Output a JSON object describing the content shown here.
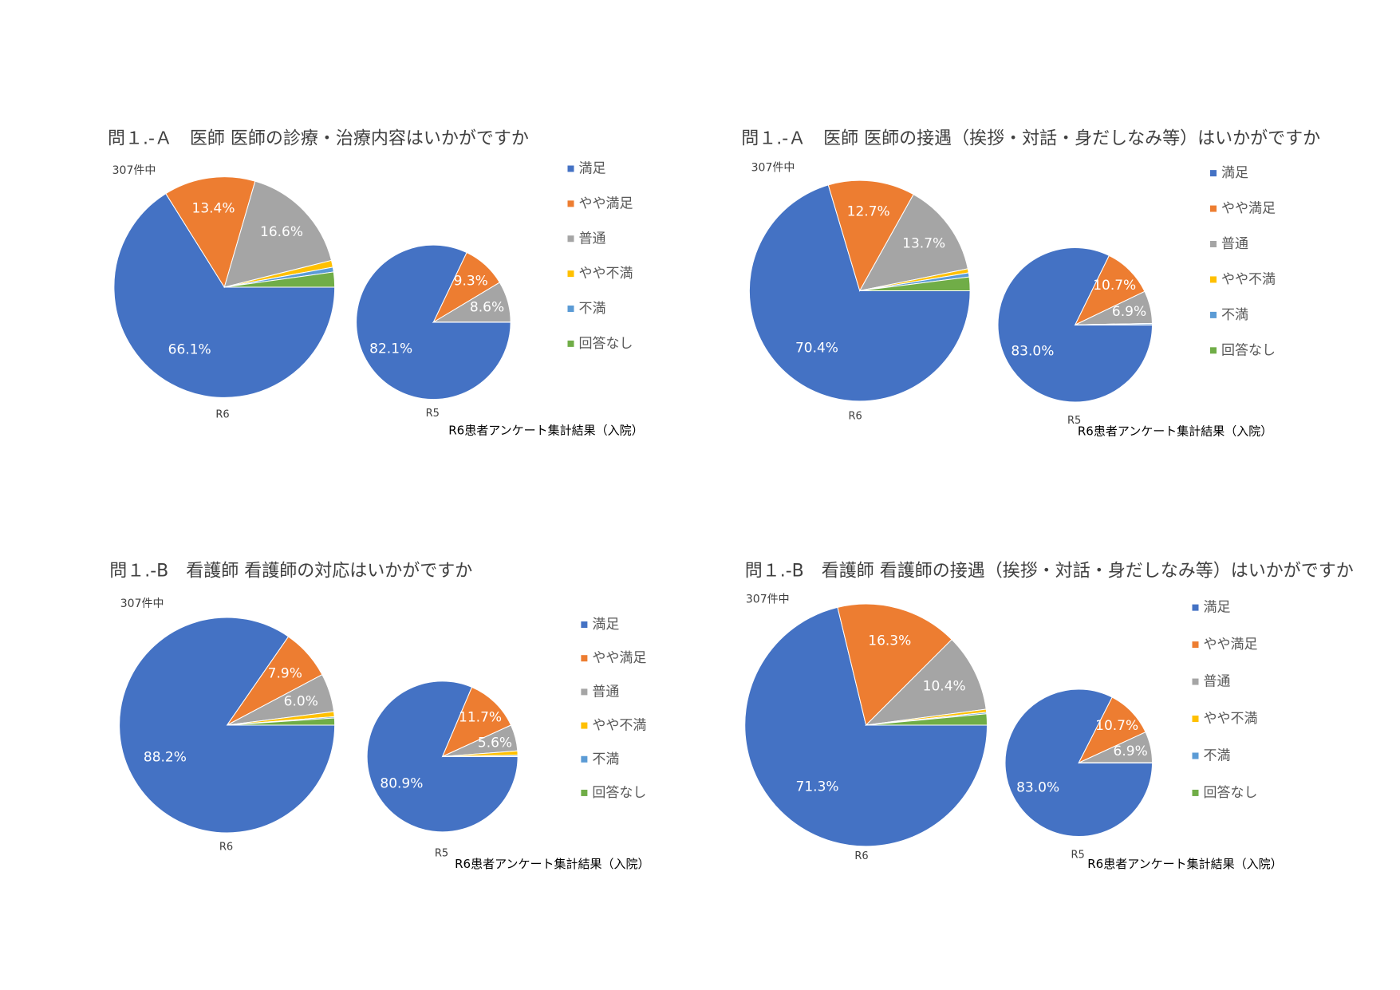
{
  "chart_data": [
    {
      "type": "pie",
      "title": "問１.-Ａ　医師 医師の診療・治療内容はいかがですか",
      "note": "307件中",
      "categories": [
        "満足",
        "やや満足",
        "普通",
        "やや不満",
        "不満",
        "回答なし"
      ],
      "colors": [
        "#4472c4",
        "#ed7d31",
        "#a5a5a5",
        "#ffc000",
        "#5b9bd5",
        "#70ad47"
      ],
      "pies": [
        {
          "name": "R6",
          "values": [
            66.1,
            13.4,
            16.6,
            1.0,
            0.7,
            2.2
          ],
          "value_labels": [
            "66.1%",
            "13.4%",
            "16.6%",
            null,
            null,
            null
          ]
        },
        {
          "name": "R5",
          "values": [
            82.1,
            9.3,
            8.6,
            0,
            0,
            0
          ],
          "value_labels": [
            "82.1%",
            "9.3%",
            "8.6%",
            null,
            null,
            null
          ]
        }
      ],
      "footnote": "R6患者アンケート集計結果（入院）"
    },
    {
      "type": "pie",
      "title": "問１.-Ａ　医師 医師の接遇（挨拶・対話・身だしなみ等）はいかがですか",
      "note": "307件中",
      "categories": [
        "満足",
        "やや満足",
        "普通",
        "やや不満",
        "不満",
        "回答なし"
      ],
      "colors": [
        "#4472c4",
        "#ed7d31",
        "#a5a5a5",
        "#ffc000",
        "#5b9bd5",
        "#70ad47"
      ],
      "pies": [
        {
          "name": "R6",
          "values": [
            70.4,
            12.7,
            13.7,
            0.6,
            0.6,
            2.0
          ],
          "value_labels": [
            "70.4%",
            "12.7%",
            "13.7%",
            null,
            null,
            null
          ]
        },
        {
          "name": "R5",
          "values": [
            83.0,
            10.7,
            6.9,
            0,
            0.3,
            0
          ],
          "value_labels": [
            "83.0%",
            "10.7%",
            "6.9%",
            null,
            null,
            null
          ]
        }
      ],
      "footnote": "R6患者アンケート集計結果（入院）"
    },
    {
      "type": "pie",
      "title": "問１.-B　看護師 看護師の対応はいかがですか",
      "note": "307件中",
      "categories": [
        "満足",
        "やや満足",
        "普通",
        "やや不満",
        "不満",
        "回答なし"
      ],
      "colors": [
        "#4472c4",
        "#ed7d31",
        "#a5a5a5",
        "#ffc000",
        "#5b9bd5",
        "#70ad47"
      ],
      "pies": [
        {
          "name": "R6",
          "values": [
            88.2,
            7.9,
            6.0,
            0.8,
            0.2,
            1.1
          ],
          "value_labels": [
            "88.2%",
            "7.9%",
            "6.0%",
            null,
            null,
            null
          ]
        },
        {
          "name": "R5",
          "values": [
            80.9,
            11.7,
            5.6,
            0.9,
            0.3,
            0
          ],
          "value_labels": [
            "80.9%",
            "11.7%",
            "5.6%",
            null,
            null,
            null
          ]
        }
      ],
      "footnote": "R6患者アンケート集計結果（入院）"
    },
    {
      "type": "pie",
      "title": "問１.-B　看護師 看護師の接遇（挨拶・対話・身だしなみ等）はいかがですか",
      "note": "307件中",
      "categories": [
        "満足",
        "やや満足",
        "普通",
        "やや不満",
        "不満",
        "回答なし"
      ],
      "colors": [
        "#4472c4",
        "#ed7d31",
        "#a5a5a5",
        "#ffc000",
        "#5b9bd5",
        "#70ad47"
      ],
      "pies": [
        {
          "name": "R6",
          "values": [
            71.3,
            16.3,
            10.4,
            0.4,
            0.2,
            1.5
          ],
          "value_labels": [
            "71.3%",
            "16.3%",
            "10.4%",
            null,
            null,
            null
          ]
        },
        {
          "name": "R5",
          "values": [
            83.0,
            10.7,
            6.9,
            0,
            0,
            0
          ],
          "value_labels": [
            "83.0%",
            "10.7%",
            "6.9%",
            null,
            null,
            null
          ]
        }
      ],
      "footnote": "R6患者アンケート集計結果（入院）"
    }
  ]
}
